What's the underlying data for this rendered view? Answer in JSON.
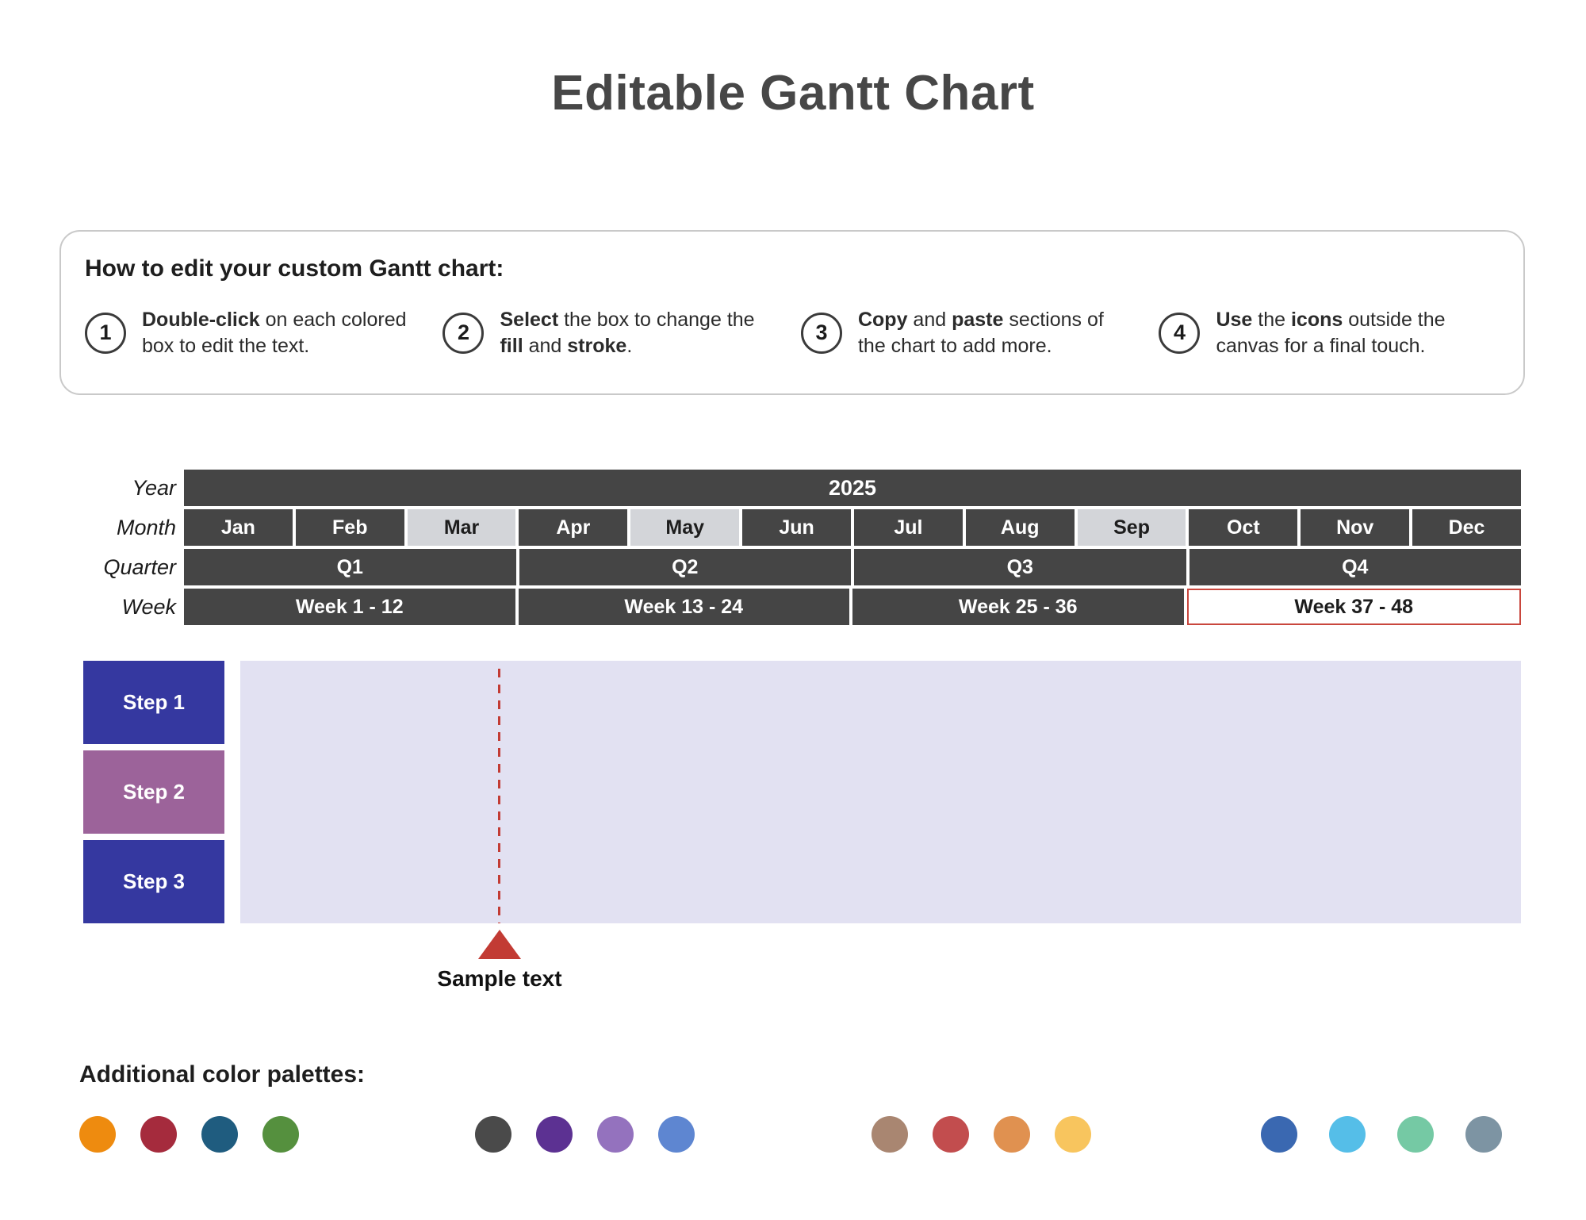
{
  "title": "Editable Gantt Chart",
  "instructions": {
    "heading": "How to edit your custom Gantt chart:",
    "items": [
      {
        "number": "1",
        "segments": [
          {
            "text": "Double-click",
            "bold": true
          },
          {
            "text": " on each colored box to edit the text.",
            "bold": false
          }
        ]
      },
      {
        "number": "2",
        "segments": [
          {
            "text": "Select",
            "bold": true
          },
          {
            "text": " the box to change the ",
            "bold": false
          },
          {
            "text": "fill",
            "bold": true
          },
          {
            "text": " and ",
            "bold": false
          },
          {
            "text": "stroke",
            "bold": true
          },
          {
            "text": ".",
            "bold": false
          }
        ]
      },
      {
        "number": "3",
        "segments": [
          {
            "text": "Copy",
            "bold": true
          },
          {
            "text": " and ",
            "bold": false
          },
          {
            "text": "paste",
            "bold": true
          },
          {
            "text": " sections of the chart to add more.",
            "bold": false
          }
        ]
      },
      {
        "number": "4",
        "segments": [
          {
            "text": "Use",
            "bold": true
          },
          {
            "text": " the ",
            "bold": false
          },
          {
            "text": "icons",
            "bold": true
          },
          {
            "text": " outside the canvas for a final touch.",
            "bold": false
          }
        ]
      }
    ]
  },
  "gantt": {
    "row_labels": [
      "Year",
      "Month",
      "Quarter",
      "Week"
    ],
    "year": "2025",
    "months": [
      {
        "label": "Jan",
        "light": false
      },
      {
        "label": "Feb",
        "light": false
      },
      {
        "label": "Mar",
        "light": true
      },
      {
        "label": "Apr",
        "light": false
      },
      {
        "label": "May",
        "light": true
      },
      {
        "label": "Jun",
        "light": false
      },
      {
        "label": "Jul",
        "light": false
      },
      {
        "label": "Aug",
        "light": false
      },
      {
        "label": "Sep",
        "light": true
      },
      {
        "label": "Oct",
        "light": false
      },
      {
        "label": "Nov",
        "light": false
      },
      {
        "label": "Dec",
        "light": false
      }
    ],
    "quarters": [
      "Q1",
      "Q2",
      "Q3",
      "Q4"
    ],
    "weeks": [
      {
        "label": "Week 1 - 12",
        "selected": false
      },
      {
        "label": "Week 13 - 24",
        "selected": false
      },
      {
        "label": "Week 25 - 36",
        "selected": false
      },
      {
        "label": "Week 37 - 48",
        "selected": true
      }
    ],
    "steps": [
      {
        "label": "Step 1",
        "color": "#3538a0"
      },
      {
        "label": "Step 2",
        "color": "#9c639a"
      },
      {
        "label": "Step 3",
        "color": "#3538a0"
      }
    ],
    "colors": {
      "header_dark": "#454545",
      "month_light": "#d3d5d9",
      "chart_background": "#e2e1f2",
      "accent_red": "#c23b34",
      "selected_week_border": "#c9463d"
    }
  },
  "milestone": {
    "label": "Sample text"
  },
  "palettes": {
    "heading": "Additional color palettes:",
    "groups": [
      [
        "#ee8b0f",
        "#a52b3d",
        "#1f5c7f",
        "#55903e"
      ],
      [
        "#4a4a4a",
        "#5c3192",
        "#9472be",
        "#5e86d1"
      ],
      [
        "#a98671",
        "#c24d4e",
        "#e09150",
        "#f8c55e"
      ],
      [
        "#3a68b1",
        "#55bee8",
        "#75c9a4",
        "#7d94a3"
      ]
    ]
  }
}
